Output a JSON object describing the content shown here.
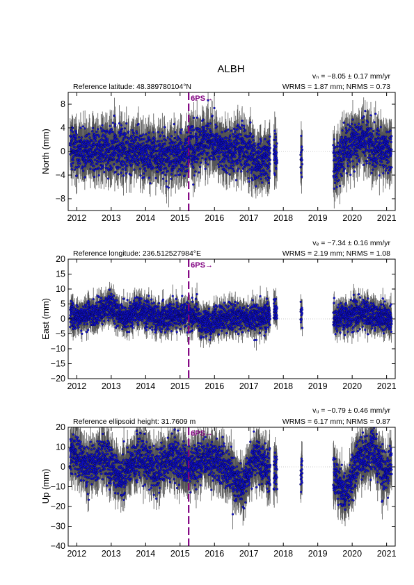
{
  "figure": {
    "title": "ALBH"
  },
  "colors": {
    "points": "#1010d0",
    "errorbars": "#555555",
    "event": "#800080",
    "zero": "#bbbbbb"
  },
  "chart_data": [
    {
      "type": "scatter",
      "id": "north",
      "ylabel": "North (mm)",
      "ref_label": "Reference latitude: 48.389780104°N",
      "rate_label": "vₙ = −8.05 ± 0.17 mm/yr",
      "wrms_label": "WRMS = 1.87 mm; NRMS = 0.73",
      "xlim": [
        2011.75,
        2021.25
      ],
      "ylim": [
        -10,
        10
      ],
      "y_ticks": [
        -8,
        -4,
        0,
        4,
        8
      ],
      "x_ticks": [
        2012,
        2013,
        2014,
        2015,
        2016,
        2017,
        2018,
        2019,
        2020,
        2021
      ],
      "event": {
        "year": 2015.25,
        "label": "6PS→"
      },
      "series_profile": {
        "name": "",
        "segments": [
          [
            2011.8,
            2017.62
          ],
          [
            2017.72,
            2017.82
          ],
          [
            2018.5,
            2018.55
          ],
          [
            2019.45,
            2021.15
          ]
        ],
        "mean_keypoints": [
          [
            2011.8,
            0.5
          ],
          [
            2012.5,
            0
          ],
          [
            2013.5,
            0.5
          ],
          [
            2014.5,
            -1
          ],
          [
            2015.25,
            0
          ],
          [
            2015.8,
            2
          ],
          [
            2016.3,
            0
          ],
          [
            2016.8,
            0.5
          ],
          [
            2017.3,
            -2
          ],
          [
            2017.7,
            0
          ],
          [
            2018.5,
            -1
          ],
          [
            2019.5,
            -2
          ],
          [
            2019.9,
            1
          ],
          [
            2020.3,
            2.5
          ],
          [
            2020.7,
            0
          ],
          [
            2021.1,
            0
          ]
        ],
        "scatter_sd": 1.8,
        "errorbar_mean": 2.6
      }
    },
    {
      "type": "scatter",
      "id": "east",
      "ylabel": "East (mm)",
      "ref_label": "Reference longitude: 236.512527984°E",
      "rate_label": "vₑ = −7.34 ± 0.16 mm/yr",
      "wrms_label": "WRMS = 2.19 mm; NRMS = 1.08",
      "xlim": [
        2011.75,
        2021.25
      ],
      "ylim": [
        -20,
        20
      ],
      "y_ticks": [
        -20,
        -15,
        -10,
        -5,
        0,
        5,
        10,
        15,
        20
      ],
      "x_ticks": [
        2012,
        2013,
        2014,
        2015,
        2016,
        2017,
        2018,
        2019,
        2020,
        2021
      ],
      "event": {
        "year": 2015.25,
        "label": "6PS→"
      },
      "series_profile": {
        "name": "",
        "segments": [
          [
            2011.8,
            2017.62
          ],
          [
            2017.72,
            2017.82
          ],
          [
            2018.5,
            2018.55
          ],
          [
            2019.45,
            2021.15
          ]
        ],
        "mean_keypoints": [
          [
            2011.8,
            1
          ],
          [
            2012.5,
            1.5
          ],
          [
            2013,
            4
          ],
          [
            2013.4,
            0
          ],
          [
            2013.8,
            3
          ],
          [
            2014.3,
            0
          ],
          [
            2015.0,
            1.5
          ],
          [
            2015.5,
            1.5
          ],
          [
            2015.6,
            -2
          ],
          [
            2016.5,
            1
          ],
          [
            2016.9,
            0
          ],
          [
            2017.6,
            1
          ],
          [
            2017.75,
            3
          ],
          [
            2018.5,
            2
          ],
          [
            2019.5,
            0
          ],
          [
            2020.2,
            2
          ],
          [
            2021.1,
            0
          ]
        ],
        "scatter_sd": 2.2,
        "errorbar_mean": 3.0
      }
    },
    {
      "type": "scatter",
      "id": "up",
      "ylabel": "Up (mm)",
      "ref_label": "Reference ellipsoid height: 31.7609 m",
      "rate_label": "vᵤ = −0.79 ± 0.46 mm/yr",
      "wrms_label": "WRMS = 6.17 mm; NRMS = 0.87",
      "xlim": [
        2011.75,
        2021.25
      ],
      "ylim": [
        -40,
        20
      ],
      "y_ticks": [
        -40,
        -30,
        -20,
        -10,
        0,
        10,
        20
      ],
      "x_ticks": [
        2012,
        2013,
        2014,
        2015,
        2016,
        2017,
        2018,
        2019,
        2020,
        2021
      ],
      "event": {
        "year": 2015.25,
        "label": "6PS→"
      },
      "series_profile": {
        "name": "",
        "segments": [
          [
            2011.8,
            2017.62
          ],
          [
            2017.72,
            2017.82
          ],
          [
            2018.5,
            2018.55
          ],
          [
            2019.45,
            2021.15
          ]
        ],
        "mean_keypoints": [
          [
            2011.8,
            8
          ],
          [
            2012.3,
            0
          ],
          [
            2012.8,
            5
          ],
          [
            2013.3,
            -5
          ],
          [
            2013.8,
            5
          ],
          [
            2014.3,
            -2
          ],
          [
            2014.8,
            5
          ],
          [
            2015.3,
            0
          ],
          [
            2015.8,
            5
          ],
          [
            2016.3,
            0
          ],
          [
            2016.8,
            -10
          ],
          [
            2017.2,
            5
          ],
          [
            2017.6,
            -3
          ],
          [
            2018.5,
            -3
          ],
          [
            2019.5,
            -5
          ],
          [
            2019.8,
            -15
          ],
          [
            2020.2,
            5
          ],
          [
            2020.6,
            8
          ],
          [
            2021.0,
            -5
          ],
          [
            2021.1,
            2
          ]
        ],
        "scatter_sd": 5.0,
        "errorbar_mean": 7.5
      }
    }
  ]
}
